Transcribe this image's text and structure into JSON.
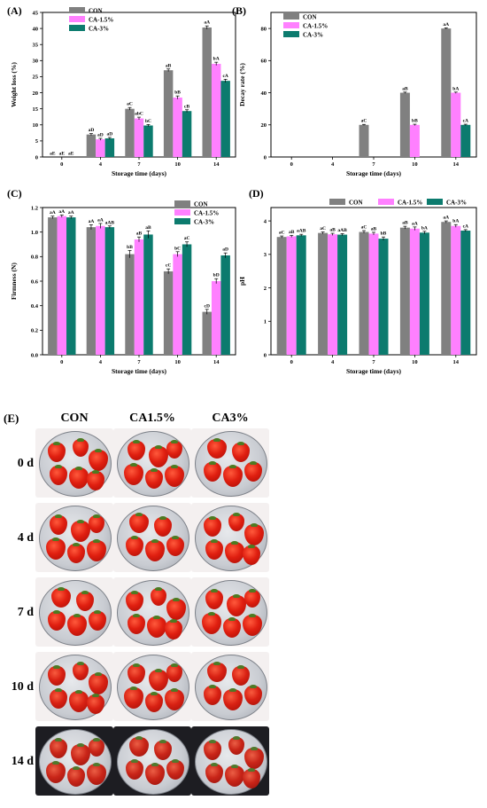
{
  "colors": {
    "CON": "#808080",
    "CA-1.5%": "#ff80ff",
    "CA-3%": "#0c7b6e"
  },
  "panel_e": {
    "letter": "(E)",
    "columns": [
      "CON",
      "CA1.5%",
      "CA3%"
    ],
    "rows": [
      "0 d",
      "4 d",
      "7 d",
      "10 d",
      "14 d"
    ],
    "background_light": "#f4f0f0",
    "background_dark": "#1d1d22",
    "berry_color": "#e01f10",
    "dish_color": "#c9ccd2"
  },
  "chart_data": [
    {
      "panel": "(A)",
      "type": "bar",
      "xlabel": "Storage time (days)",
      "ylabel": "Weight loss (%)",
      "ylim": [
        0,
        45
      ],
      "yticks": [
        0,
        5,
        10,
        15,
        20,
        25,
        30,
        35,
        40,
        45
      ],
      "categories": [
        "0",
        "4",
        "7",
        "10",
        "14"
      ],
      "legend": "top-left",
      "series": [
        {
          "name": "CON",
          "values": [
            0,
            7,
            15,
            27,
            40.3
          ],
          "errors": [
            0,
            0.3,
            0.4,
            0.4,
            0.5
          ],
          "labels": [
            "aE",
            "aD",
            "aC",
            "aB",
            "aA"
          ]
        },
        {
          "name": "CA-1.5%",
          "values": [
            0,
            5.5,
            12,
            18.5,
            29
          ],
          "errors": [
            0,
            0.3,
            0.4,
            0.5,
            0.5
          ],
          "labels": [
            "aE",
            "aD",
            "abC",
            "bB",
            "bA"
          ]
        },
        {
          "name": "CA-3%",
          "values": [
            0,
            5.8,
            9.8,
            14.3,
            23.7
          ],
          "errors": [
            0,
            0.3,
            0.3,
            0.4,
            0.5
          ],
          "labels": [
            "aE",
            "aD",
            "bC",
            "cB",
            "cA"
          ]
        }
      ]
    },
    {
      "panel": "(B)",
      "type": "bar",
      "xlabel": "Storage time (days)",
      "ylabel": "Decay rate (%)",
      "ylim": [
        0,
        90
      ],
      "yticks": [
        0,
        20,
        40,
        60,
        80
      ],
      "categories": [
        "0",
        "4",
        "7",
        "10",
        "14"
      ],
      "legend": "top-left",
      "series": [
        {
          "name": "CON",
          "values": [
            0,
            0,
            20,
            40,
            80
          ],
          "errors": [
            0,
            0,
            0.3,
            0.4,
            0.4
          ],
          "labels": [
            "",
            "",
            "aC",
            "aB",
            "aA"
          ]
        },
        {
          "name": "CA-1.5%",
          "values": [
            0,
            0,
            0,
            20,
            40
          ],
          "errors": [
            0,
            0,
            0,
            0.4,
            0.4
          ],
          "labels": [
            "",
            "",
            "",
            "bB",
            "bA"
          ]
        },
        {
          "name": "CA-3%",
          "values": [
            0,
            0,
            0,
            0,
            20
          ],
          "errors": [
            0,
            0,
            0,
            0,
            0.4
          ],
          "labels": [
            "",
            "",
            "",
            "",
            "cA"
          ]
        }
      ]
    },
    {
      "panel": "(C)",
      "type": "bar",
      "xlabel": "Storage time (days)",
      "ylabel": "Firmness (N)",
      "ylim": [
        0,
        1.2
      ],
      "yticks": [
        "0.0",
        "0.2",
        "0.4",
        "0.6",
        "0.8",
        "1.0",
        "1.2"
      ],
      "categories": [
        "0",
        "4",
        "7",
        "10",
        "14"
      ],
      "legend": "top-right",
      "series": [
        {
          "name": "CON",
          "values": [
            1.12,
            1.04,
            0.82,
            0.68,
            0.35
          ],
          "errors": [
            0.01,
            0.02,
            0.03,
            0.02,
            0.02
          ],
          "labels": [
            "aA",
            "aA",
            "bB",
            "cC",
            "cD"
          ]
        },
        {
          "name": "CA-1.5%",
          "values": [
            1.13,
            1.05,
            0.94,
            0.82,
            0.6
          ],
          "errors": [
            0.01,
            0.02,
            0.02,
            0.02,
            0.02
          ],
          "labels": [
            "aA",
            "aA",
            "aB",
            "bC",
            "bD"
          ]
        },
        {
          "name": "CA-3%",
          "values": [
            1.12,
            1.04,
            0.98,
            0.9,
            0.81
          ],
          "errors": [
            0.01,
            0.01,
            0.03,
            0.02,
            0.02
          ],
          "labels": [
            "aA",
            "aAB",
            "aB",
            "aC",
            "aD"
          ]
        }
      ]
    },
    {
      "panel": "(D)",
      "type": "bar",
      "xlabel": "Storage time (days)",
      "ylabel": "pH",
      "ylim": [
        0,
        4.4
      ],
      "yticks": [
        0,
        1,
        2,
        3,
        4
      ],
      "categories": [
        "0",
        "4",
        "7",
        "10",
        "14"
      ],
      "legend": "top",
      "series": [
        {
          "name": "CON",
          "values": [
            3.52,
            3.64,
            3.67,
            3.8,
            3.97
          ],
          "errors": [
            0.03,
            0.03,
            0.04,
            0.04,
            0.03
          ],
          "labels": [
            "aC",
            "aC",
            "aC",
            "aB",
            "aA"
          ]
        },
        {
          "name": "CA-1.5%",
          "values": [
            3.54,
            3.6,
            3.62,
            3.77,
            3.85
          ],
          "errors": [
            0.03,
            0.03,
            0.04,
            0.05,
            0.04
          ],
          "labels": [
            "aB",
            "aB",
            "aB",
            "aA",
            "bA"
          ]
        },
        {
          "name": "CA-3%",
          "values": [
            3.57,
            3.59,
            3.47,
            3.65,
            3.71
          ],
          "errors": [
            0.03,
            0.03,
            0.05,
            0.04,
            0.03
          ],
          "labels": [
            "aAB",
            "aAB",
            "bB",
            "bA",
            "cA"
          ]
        }
      ]
    }
  ]
}
